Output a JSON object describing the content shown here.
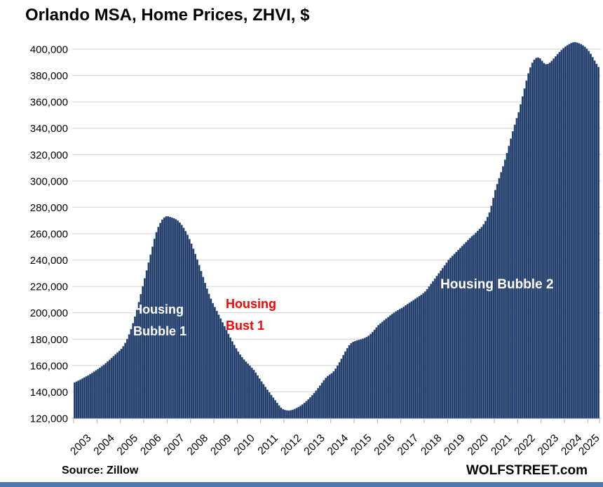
{
  "title": "Orlando MSA, Home Prices, ZHVI, $",
  "footer": {
    "source": "Source: Zillow",
    "brand": "WOLFSTREET.com"
  },
  "annotations": {
    "bubble1": {
      "lines": [
        "Housing",
        "Bubble 1"
      ],
      "color": "#ffffff"
    },
    "bust1": {
      "lines": [
        "Housing",
        "Bust 1"
      ],
      "color": "#ff0000"
    },
    "bubble2": {
      "lines": [
        "Housing Bubble 2"
      ],
      "color": "#ffffff"
    }
  },
  "colors": {
    "bar_fill": "#1d2c49",
    "bar_edge": "#41659c",
    "gridline": "#d9d9d9",
    "axis": "#bdbdbd",
    "text": "#000000",
    "footer_bar": "#4b79b1",
    "bust_text": "#ff0000"
  },
  "chart_data": {
    "type": "bar",
    "title": "Orlando MSA, Home Prices, ZHVI, $",
    "xlabel": "",
    "ylabel": "",
    "frequency": "monthly",
    "x_start": "2003-01",
    "x_end": "2025-06",
    "x_tick_labels": [
      "2003",
      "2004",
      "2005",
      "2006",
      "2007",
      "2008",
      "2009",
      "2010",
      "2011",
      "2012",
      "2013",
      "2014",
      "2015",
      "2016",
      "2017",
      "2018",
      "2019",
      "2020",
      "2021",
      "2022",
      "2023",
      "2024",
      "2025"
    ],
    "ylim": [
      120000,
      400000
    ],
    "y_tick_step": 20000,
    "grid": true,
    "legend": false,
    "values": [
      147000,
      147700,
      148400,
      149200,
      150000,
      150800,
      151600,
      152400,
      153300,
      154200,
      155200,
      156200,
      157200,
      158200,
      159300,
      160400,
      161600,
      162900,
      164200,
      165600,
      167000,
      168400,
      169700,
      171000,
      172500,
      174500,
      177000,
      180000,
      183500,
      187500,
      192000,
      197000,
      202500,
      208000,
      214000,
      220000,
      226000,
      232000,
      238000,
      244000,
      250000,
      256000,
      261000,
      265000,
      268000,
      270500,
      272000,
      273000,
      273000,
      272500,
      272000,
      271500,
      270800,
      269800,
      268300,
      266500,
      264300,
      261800,
      259000,
      255800,
      252300,
      248500,
      244500,
      240300,
      236000,
      231500,
      227000,
      222500,
      218200,
      214200,
      210500,
      207200,
      204200,
      201300,
      198400,
      195500,
      192600,
      189700,
      186800,
      183900,
      181000,
      178200,
      175500,
      172900,
      170400,
      168200,
      166200,
      164400,
      162800,
      161300,
      159800,
      158200,
      156500,
      154500,
      152300,
      150000,
      147800,
      145700,
      143600,
      141500,
      139500,
      137500,
      135500,
      133500,
      131500,
      129600,
      127900,
      126700,
      126100,
      125800,
      125700,
      125900,
      126300,
      126900,
      127600,
      128400,
      129300,
      130300,
      131500,
      132800,
      134200,
      135700,
      137300,
      139000,
      140800,
      142700,
      144700,
      146700,
      148700,
      150500,
      151900,
      153000,
      154000,
      155500,
      157500,
      159800,
      162300,
      165000,
      167800,
      170500,
      173000,
      175200,
      176800,
      177800,
      178400,
      178900,
      179300,
      179700,
      180200,
      180800,
      181500,
      182500,
      183800,
      185300,
      187000,
      188800,
      190500,
      191800,
      193000,
      194200,
      195400,
      196600,
      197800,
      198900,
      199900,
      200900,
      201800,
      202700,
      203500,
      204500,
      205500,
      206500,
      207500,
      208500,
      209500,
      210500,
      211500,
      212500,
      213500,
      214700,
      216000,
      217800,
      219800,
      221800,
      223800,
      225800,
      227800,
      229800,
      231800,
      233800,
      235800,
      237900,
      240000,
      241500,
      243000,
      244500,
      246000,
      247500,
      249000,
      250500,
      252000,
      253500,
      255000,
      256500,
      258000,
      259000,
      260500,
      262000,
      263500,
      265000,
      267000,
      269500,
      272500,
      276000,
      281000,
      287000,
      293000,
      297500,
      302000,
      306500,
      311000,
      316000,
      321000,
      326500,
      332000,
      337500,
      342500,
      347500,
      352000,
      358000,
      364000,
      370000,
      376000,
      381500,
      386000,
      389500,
      391800,
      393200,
      393500,
      392800,
      391000,
      389300,
      388400,
      388600,
      389600,
      391000,
      392700,
      394400,
      396100,
      397700,
      399200,
      400600,
      401800,
      402800,
      403700,
      404500,
      405000,
      405100,
      404800,
      404300,
      403600,
      402700,
      401600,
      400200,
      398500,
      396300,
      393800,
      391200,
      388700,
      386300
    ]
  }
}
